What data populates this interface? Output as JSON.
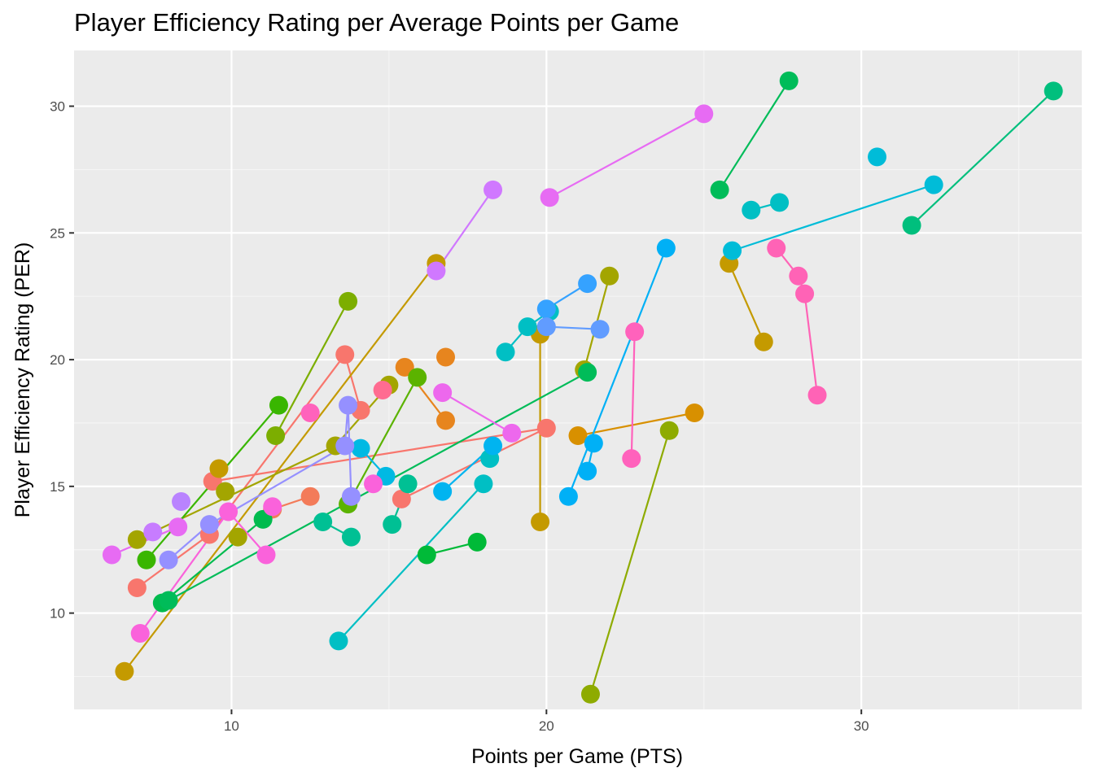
{
  "chart_data": {
    "type": "scatter",
    "title": "Player Efficiency Rating per Average Points per Game",
    "xlabel": "Points per Game (PTS)",
    "ylabel": "Player Efficiency Rating (PER)",
    "xlim": [
      5,
      37
    ],
    "ylim": [
      6.2,
      32.2
    ],
    "x_ticks": [
      10,
      20,
      30
    ],
    "y_ticks": [
      10,
      15,
      20,
      25,
      30
    ],
    "grid": true,
    "legend": "none",
    "colors": {
      "panel_background": "#ebebeb",
      "grid_major": "#ffffff",
      "grid_minor": "#f5f5f5"
    },
    "series": [
      {
        "color": "#F8766D",
        "points": [
          [
            7.0,
            11.0
          ],
          [
            9.3,
            13.1
          ],
          [
            13.6,
            20.2
          ],
          [
            14.1,
            18.0
          ]
        ]
      },
      {
        "color": "#F8766D",
        "points": [
          [
            9.4,
            15.2
          ],
          [
            20.0,
            17.3
          ],
          [
            15.4,
            14.5
          ]
        ]
      },
      {
        "color": "#F37B59",
        "points": [
          [
            12.5,
            14.6
          ],
          [
            11.3,
            14.1
          ]
        ]
      },
      {
        "color": "#E7851E",
        "points": [
          [
            15.5,
            19.7
          ],
          [
            16.8,
            17.6
          ]
        ]
      },
      {
        "color": "#E7851E",
        "points": [
          [
            16.8,
            20.1
          ]
        ]
      },
      {
        "color": "#D89000",
        "points": [
          [
            21.0,
            17.0
          ],
          [
            24.7,
            17.9
          ]
        ]
      },
      {
        "color": "#C49A00",
        "points": [
          [
            6.6,
            7.7
          ],
          [
            16.5,
            23.8
          ]
        ]
      },
      {
        "color": "#C49A00",
        "points": [
          [
            19.8,
            21.0
          ],
          [
            19.8,
            13.6
          ]
        ]
      },
      {
        "color": "#C49A00",
        "points": [
          [
            25.8,
            23.8
          ],
          [
            26.9,
            20.7
          ]
        ]
      },
      {
        "color": "#C49A00",
        "points": [
          [
            9.6,
            15.7
          ]
        ]
      },
      {
        "color": "#A3A500",
        "points": [
          [
            7.0,
            12.9
          ],
          [
            13.3,
            16.6
          ],
          [
            15.0,
            19.0
          ]
        ]
      },
      {
        "color": "#A3A500",
        "points": [
          [
            9.8,
            14.8
          ]
        ]
      },
      {
        "color": "#A3A500",
        "points": [
          [
            10.2,
            13.0
          ]
        ]
      },
      {
        "color": "#A3A500",
        "points": [
          [
            21.2,
            19.6
          ],
          [
            22.0,
            23.3
          ]
        ]
      },
      {
        "color": "#8EAB00",
        "points": [
          [
            21.4,
            6.8
          ],
          [
            23.9,
            17.2
          ]
        ]
      },
      {
        "color": "#7CAE00",
        "points": [
          [
            11.4,
            17.0
          ],
          [
            13.7,
            22.3
          ]
        ]
      },
      {
        "color": "#5BB300",
        "points": [
          [
            13.7,
            14.3
          ],
          [
            15.9,
            19.3
          ]
        ]
      },
      {
        "color": "#39B600",
        "points": [
          [
            7.3,
            12.1
          ],
          [
            11.5,
            18.2
          ]
        ]
      },
      {
        "color": "#00BA38",
        "points": [
          [
            16.2,
            12.3
          ],
          [
            17.8,
            12.8
          ]
        ]
      },
      {
        "color": "#00BB4E",
        "points": [
          [
            7.8,
            10.4
          ],
          [
            11.0,
            13.7
          ]
        ]
      },
      {
        "color": "#00BC59",
        "points": [
          [
            8.0,
            10.5
          ],
          [
            21.3,
            19.5
          ]
        ]
      },
      {
        "color": "#00BC59",
        "points": [
          [
            25.5,
            26.7
          ],
          [
            27.7,
            31.0
          ]
        ]
      },
      {
        "color": "#00BF7D",
        "points": [
          [
            31.6,
            25.3
          ],
          [
            36.1,
            30.6
          ]
        ]
      },
      {
        "color": "#00C094",
        "points": [
          [
            12.9,
            13.6
          ],
          [
            13.8,
            13.0
          ]
        ]
      },
      {
        "color": "#00C094",
        "points": [
          [
            15.1,
            13.5
          ],
          [
            15.6,
            15.1
          ]
        ]
      },
      {
        "color": "#00BFC4",
        "points": [
          [
            13.4,
            8.9
          ],
          [
            18.0,
            15.1
          ]
        ]
      },
      {
        "color": "#00BFC4",
        "points": [
          [
            18.7,
            20.3
          ],
          [
            19.4,
            21.3
          ],
          [
            20.1,
            21.9
          ]
        ]
      },
      {
        "color": "#00BFC4",
        "points": [
          [
            26.5,
            25.9
          ],
          [
            27.4,
            26.2
          ]
        ]
      },
      {
        "color": "#00BFC4",
        "points": [
          [
            18.2,
            16.1
          ]
        ]
      },
      {
        "color": "#00BCD8",
        "points": [
          [
            25.9,
            24.3
          ],
          [
            32.3,
            26.9
          ]
        ]
      },
      {
        "color": "#00BCD8",
        "points": [
          [
            30.5,
            28.0
          ]
        ]
      },
      {
        "color": "#00B9E3",
        "points": [
          [
            14.1,
            16.5
          ],
          [
            14.9,
            15.4
          ]
        ]
      },
      {
        "color": "#00B4F0",
        "points": [
          [
            16.7,
            14.8
          ],
          [
            18.3,
            16.6
          ]
        ]
      },
      {
        "color": "#00B0F6",
        "points": [
          [
            20.7,
            14.6
          ],
          [
            23.8,
            24.4
          ]
        ]
      },
      {
        "color": "#00B0F6",
        "points": [
          [
            21.3,
            15.6
          ],
          [
            21.5,
            16.7
          ]
        ]
      },
      {
        "color": "#35A2FF",
        "points": [
          [
            20.0,
            22.0
          ],
          [
            21.3,
            23.0
          ]
        ]
      },
      {
        "color": "#619CFF",
        "points": [
          [
            20.0,
            21.3
          ],
          [
            21.7,
            21.2
          ]
        ]
      },
      {
        "color": "#9590FF",
        "points": [
          [
            8.0,
            12.1
          ],
          [
            9.3,
            13.5
          ],
          [
            13.6,
            16.6
          ],
          [
            13.7,
            18.2
          ],
          [
            13.8,
            14.6
          ]
        ]
      },
      {
        "color": "#B983FF",
        "points": [
          [
            8.4,
            14.4
          ]
        ]
      },
      {
        "color": "#C77CFF",
        "points": [
          [
            7.5,
            13.2
          ]
        ]
      },
      {
        "color": "#D078FF",
        "points": [
          [
            16.5,
            23.5
          ],
          [
            18.3,
            26.7
          ]
        ]
      },
      {
        "color": "#E76BF3",
        "points": [
          [
            20.1,
            26.4
          ],
          [
            25.0,
            29.7
          ]
        ]
      },
      {
        "color": "#E76BF3",
        "points": [
          [
            6.2,
            12.3
          ],
          [
            8.3,
            13.4
          ]
        ]
      },
      {
        "color": "#ED68ED",
        "points": [
          [
            16.7,
            18.7
          ],
          [
            18.9,
            17.1
          ]
        ]
      },
      {
        "color": "#FA62DB",
        "points": [
          [
            7.1,
            9.2
          ],
          [
            9.9,
            14.0
          ],
          [
            11.1,
            12.3
          ]
        ]
      },
      {
        "color": "#FA62DB",
        "points": [
          [
            11.3,
            14.2
          ]
        ]
      },
      {
        "color": "#FA62DB",
        "points": [
          [
            14.5,
            15.1
          ]
        ]
      },
      {
        "color": "#FF62BC",
        "points": [
          [
            12.5,
            17.9
          ]
        ]
      },
      {
        "color": "#FF62BC",
        "points": [
          [
            22.8,
            21.1
          ],
          [
            22.7,
            16.1
          ]
        ]
      },
      {
        "color": "#FF63B6",
        "points": [
          [
            27.3,
            24.4
          ],
          [
            28.0,
            23.3
          ],
          [
            28.2,
            22.6
          ],
          [
            28.6,
            18.6
          ]
        ]
      },
      {
        "color": "#FF6C91",
        "points": [
          [
            14.8,
            18.8
          ]
        ]
      }
    ]
  }
}
